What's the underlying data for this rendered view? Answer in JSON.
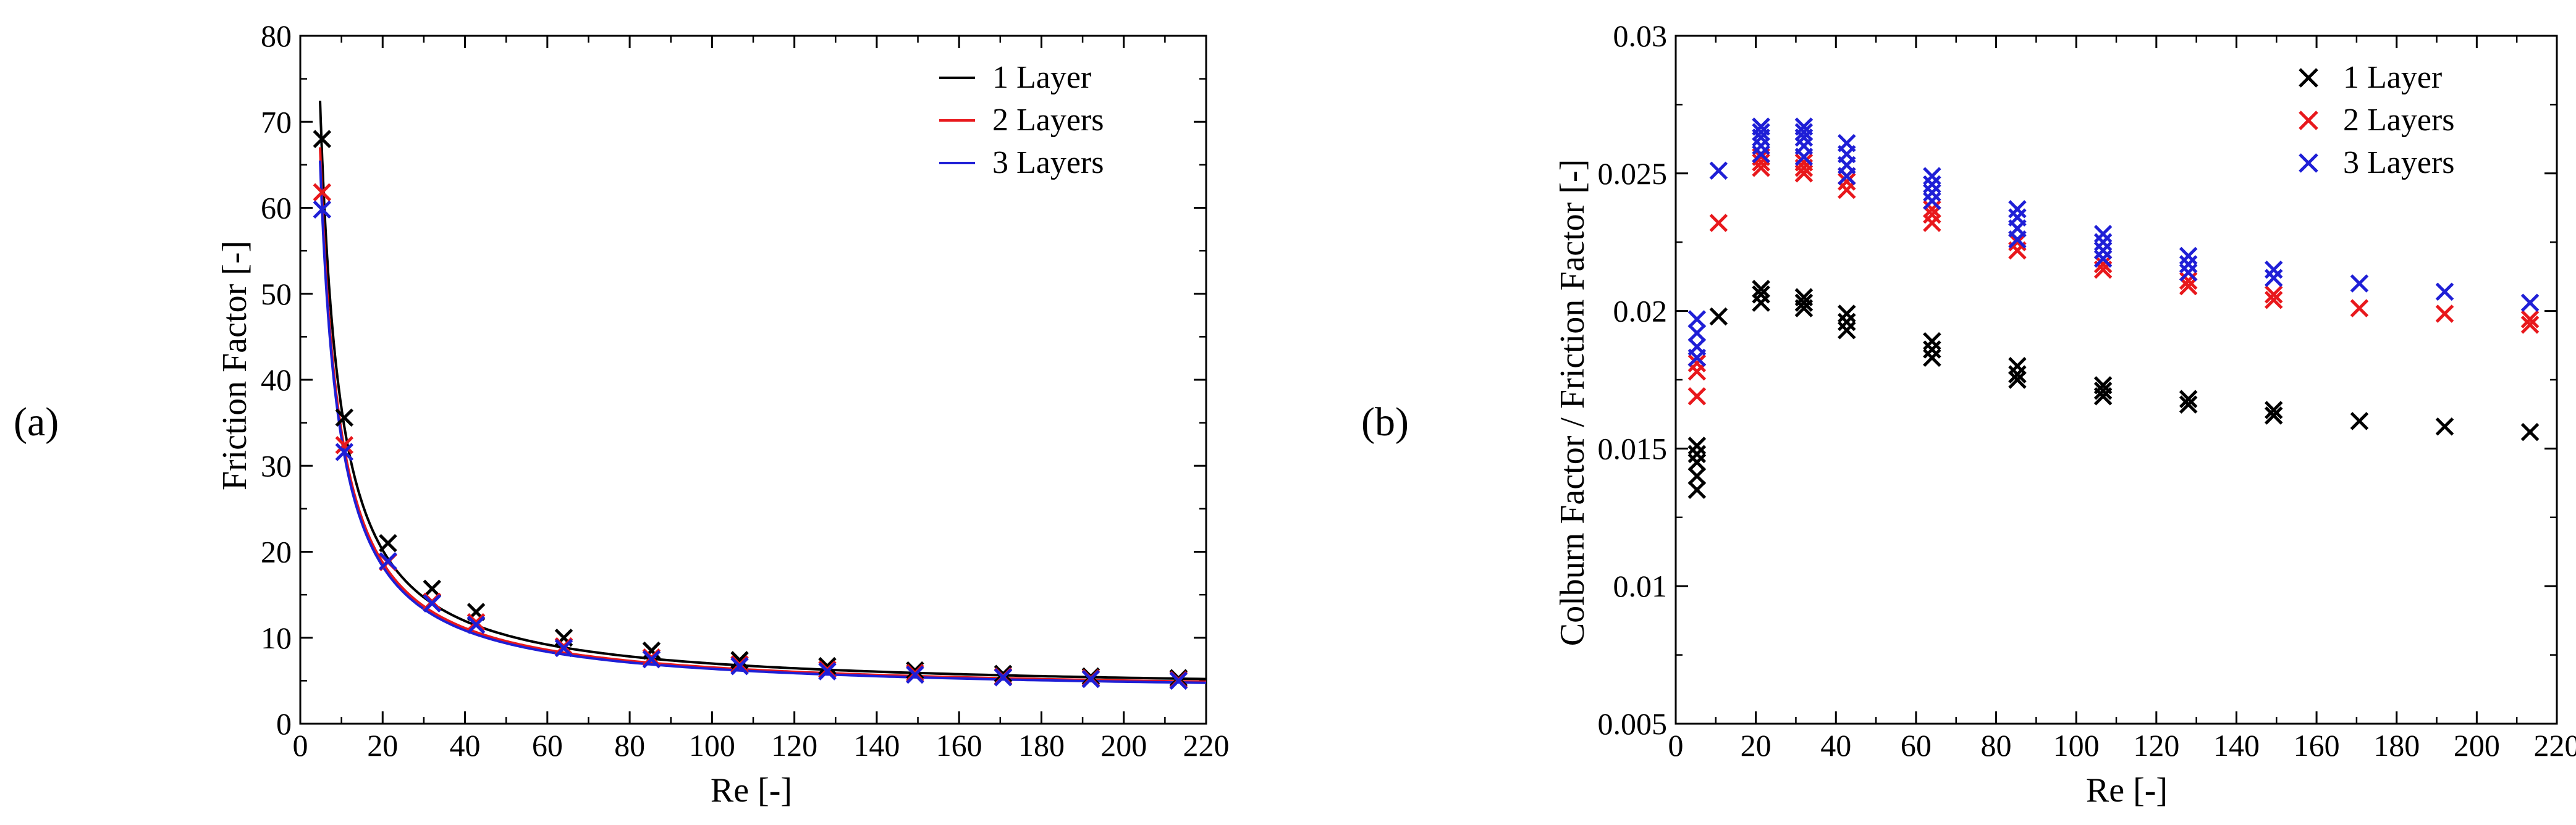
{
  "chart_data": [
    {
      "type": "scatter",
      "panel_label": "(a)",
      "xlabel": "Re [-]",
      "ylabel": "Friction Factor [-]",
      "xlim": [
        0,
        220
      ],
      "ylim": [
        0,
        80
      ],
      "xticks": [
        0,
        20,
        40,
        60,
        80,
        100,
        120,
        140,
        160,
        180,
        200,
        220
      ],
      "yticks": [
        0,
        10,
        20,
        30,
        40,
        50,
        60,
        70,
        80
      ],
      "legend_position": "top-right",
      "legend_style": "line",
      "series": [
        {
          "name": "1 Layer",
          "color": "#000000",
          "x": [
            5.3,
            10.7,
            21.3,
            32.0,
            42.7,
            64.0,
            85.3,
            106.7,
            128.0,
            149.3,
            170.7,
            192.0,
            213.3
          ],
          "y": [
            68.0,
            35.6,
            21.0,
            15.7,
            13.0,
            10.0,
            8.5,
            7.4,
            6.7,
            6.2,
            5.8,
            5.5,
            5.3
          ],
          "fit": {
            "model": "y = a / x + b",
            "a": 330,
            "b": 3.7,
            "x_range": [
              4.8,
              220
            ]
          }
        },
        {
          "name": "2 Layers",
          "color": "#e8181c",
          "x": [
            5.3,
            10.7,
            21.3,
            32.0,
            42.7,
            64.0,
            85.3,
            106.7,
            128.0,
            149.3,
            170.7,
            192.0,
            213.3
          ],
          "y": [
            61.8,
            32.4,
            18.8,
            14.2,
            11.8,
            9.0,
            7.7,
            6.9,
            6.3,
            5.9,
            5.5,
            5.3,
            5.1
          ],
          "fit": {
            "model": "y = a / x + b",
            "a": 305,
            "b": 3.5,
            "x_range": [
              4.8,
              220
            ]
          }
        },
        {
          "name": "3 Layers",
          "color": "#1f1fd6",
          "x": [
            5.3,
            10.7,
            21.3,
            32.0,
            42.7,
            64.0,
            85.3,
            106.7,
            128.0,
            149.3,
            170.7,
            192.0,
            213.3
          ],
          "y": [
            59.8,
            31.6,
            18.9,
            14.0,
            11.5,
            8.8,
            7.5,
            6.7,
            6.1,
            5.7,
            5.4,
            5.2,
            5.0
          ],
          "fit": {
            "model": "y = a / x + b",
            "a": 298,
            "b": 3.4,
            "x_range": [
              4.8,
              220
            ]
          }
        }
      ]
    },
    {
      "type": "scatter",
      "panel_label": "(b)",
      "xlabel": "Re [-]",
      "ylabel": "Colburn Factor / Friction Factor [-]",
      "xlim": [
        0,
        220
      ],
      "ylim": [
        0.005,
        0.03
      ],
      "xticks": [
        0,
        20,
        40,
        60,
        80,
        100,
        120,
        140,
        160,
        180,
        200,
        220
      ],
      "yticks": [
        0.005,
        0.01,
        0.015,
        0.02,
        0.025,
        0.03
      ],
      "legend_position": "top-right",
      "legend_style": "marker",
      "series": [
        {
          "name": "1 Layer",
          "color": "#000000",
          "x": [
            5.3,
            5.3,
            5.3,
            5.3,
            5.3,
            10.7,
            21.3,
            21.3,
            21.3,
            32.0,
            32.0,
            32.0,
            42.7,
            42.7,
            42.7,
            64.0,
            64.0,
            64.0,
            85.3,
            85.3,
            85.3,
            106.7,
            106.7,
            106.7,
            128.0,
            128.0,
            149.3,
            149.3,
            170.7,
            192.0,
            213.3
          ],
          "y": [
            0.0135,
            0.014,
            0.0145,
            0.0148,
            0.0151,
            0.0198,
            0.0203,
            0.0206,
            0.0208,
            0.0201,
            0.0203,
            0.0205,
            0.0193,
            0.0196,
            0.0199,
            0.0183,
            0.0186,
            0.0189,
            0.0175,
            0.0177,
            0.018,
            0.0169,
            0.0171,
            0.0173,
            0.0166,
            0.0168,
            0.0162,
            0.0164,
            0.016,
            0.0158,
            0.0156
          ]
        },
        {
          "name": "2 Layers",
          "color": "#e8181c",
          "x": [
            5.3,
            5.3,
            5.3,
            10.7,
            21.3,
            21.3,
            21.3,
            32.0,
            32.0,
            32.0,
            42.7,
            42.7,
            42.7,
            64.0,
            64.0,
            64.0,
            85.3,
            85.3,
            106.7,
            106.7,
            128.0,
            128.0,
            149.3,
            149.3,
            170.7,
            192.0,
            213.3,
            213.3
          ],
          "y": [
            0.0169,
            0.0178,
            0.0181,
            0.0232,
            0.0252,
            0.0254,
            0.0256,
            0.025,
            0.0252,
            0.0254,
            0.0244,
            0.0247,
            0.0249,
            0.0232,
            0.0235,
            0.0237,
            0.0222,
            0.0225,
            0.0215,
            0.0217,
            0.0209,
            0.0211,
            0.0204,
            0.0206,
            0.0201,
            0.0199,
            0.0195,
            0.0197
          ]
        },
        {
          "name": "3 Layers",
          "color": "#1f1fd6",
          "x": [
            5.3,
            5.3,
            5.3,
            5.3,
            10.7,
            21.3,
            21.3,
            21.3,
            21.3,
            21.3,
            32.0,
            32.0,
            32.0,
            32.0,
            32.0,
            42.7,
            42.7,
            42.7,
            42.7,
            64.0,
            64.0,
            64.0,
            64.0,
            85.3,
            85.3,
            85.3,
            85.3,
            106.7,
            106.7,
            106.7,
            106.7,
            128.0,
            128.0,
            128.0,
            149.3,
            149.3,
            170.7,
            192.0,
            213.3
          ],
          "y": [
            0.0183,
            0.0187,
            0.0192,
            0.0197,
            0.0251,
            0.0257,
            0.026,
            0.0263,
            0.0265,
            0.0267,
            0.0256,
            0.026,
            0.0263,
            0.0265,
            0.0267,
            0.0249,
            0.0253,
            0.0257,
            0.0261,
            0.024,
            0.0243,
            0.0246,
            0.0249,
            0.0226,
            0.023,
            0.0234,
            0.0237,
            0.0219,
            0.0222,
            0.0225,
            0.0228,
            0.0214,
            0.0217,
            0.022,
            0.0212,
            0.0215,
            0.021,
            0.0207,
            0.0203
          ]
        }
      ]
    }
  ]
}
